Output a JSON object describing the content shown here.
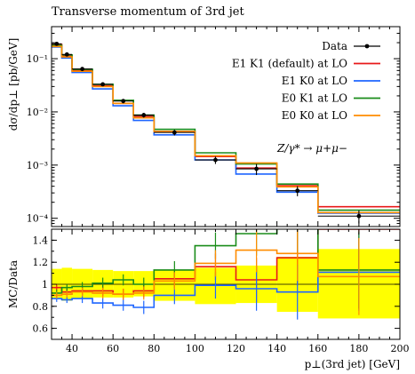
{
  "chart_data": {
    "type": "line",
    "title": "Transverse momentum of 3rd jet",
    "xlabel": "p⊥(3rd jet) [GeV]",
    "ylabel_main": "dσ/dp⊥ [pb/GeV]",
    "ylabel_ratio": "MC/Data",
    "process_label": "Z/γ* → μ+μ−",
    "x_edges": [
      30,
      35,
      40,
      50,
      60,
      70,
      80,
      100,
      120,
      140,
      160,
      200
    ],
    "xlim": [
      30,
      200
    ],
    "x_ticks": [
      "40",
      "60",
      "80",
      "100",
      "120",
      "140",
      "160",
      "180",
      "200"
    ],
    "x_tick_values": [
      40,
      60,
      80,
      100,
      120,
      140,
      160,
      180,
      200
    ],
    "main_ylim": [
      7e-05,
      0.4
    ],
    "main_y_ticks": [
      {
        "value": 0.1,
        "label": "10⁻¹"
      },
      {
        "value": 0.01,
        "label": "10⁻²"
      },
      {
        "value": 0.001,
        "label": "10⁻³"
      },
      {
        "value": 0.0001,
        "label": "10⁻⁴"
      }
    ],
    "ratio_ylim": [
      0.5,
      1.5
    ],
    "ratio_y_ticks": [
      "0.6",
      "0.8",
      "1",
      "1.2",
      "1.4"
    ],
    "ratio_y_tick_values": [
      0.6,
      0.8,
      1.0,
      1.2,
      1.4
    ],
    "legend_position": "top-right",
    "data": {
      "name": "Data",
      "color": "#000000",
      "x": [
        32.5,
        37.5,
        45,
        55,
        65,
        75,
        90,
        110,
        130,
        150,
        180
      ],
      "y": [
        0.19,
        0.12,
        0.064,
        0.033,
        0.016,
        0.0087,
        0.0041,
        0.00125,
        0.00085,
        0.00033,
        0.00011
      ],
      "yerr": [
        0.015,
        0.009,
        0.004,
        0.0025,
        0.0015,
        0.0009,
        0.0005,
        0.0002,
        0.0002,
        7e-05,
        3e-05
      ]
    },
    "band": {
      "color": "#ffff00",
      "up": [
        1.14,
        1.15,
        1.14,
        1.13,
        1.12,
        1.12,
        1.13,
        1.15,
        1.17,
        1.25,
        1.32
      ],
      "down": [
        0.87,
        0.85,
        0.87,
        0.88,
        0.88,
        0.89,
        0.85,
        0.82,
        0.83,
        0.75,
        0.69
      ]
    },
    "series": [
      {
        "name": "E1 K1 (default) at LO",
        "color": "#e8191a",
        "values": [
          0.185,
          0.112,
          0.06,
          0.031,
          0.0145,
          0.0082,
          0.0043,
          0.00145,
          0.00088,
          0.00041,
          0.000165
        ],
        "ratio": [
          0.97,
          0.93,
          0.94,
          0.94,
          0.91,
          0.94,
          1.05,
          1.16,
          1.04,
          1.24,
          1.5
        ],
        "ratio_err": [
          0.03,
          0.03,
          0.04,
          0.05,
          0.05,
          0.06,
          0.08,
          0.12,
          0.2,
          0.25,
          0.35
        ]
      },
      {
        "name": "E1 K0 at LO",
        "color": "#1f66ff",
        "values": [
          0.165,
          0.103,
          0.055,
          0.027,
          0.013,
          0.0069,
          0.0037,
          0.00125,
          0.00068,
          0.00031,
          0.000125
        ],
        "ratio": [
          0.87,
          0.86,
          0.87,
          0.83,
          0.81,
          0.79,
          0.9,
          0.99,
          0.96,
          0.93,
          1.11
        ],
        "ratio_err": [
          0.03,
          0.03,
          0.04,
          0.05,
          0.05,
          0.06,
          0.08,
          0.12,
          0.2,
          0.25,
          0.35
        ]
      },
      {
        "name": "E0 K1 at LO",
        "color": "#1a8c1a",
        "values": [
          0.178,
          0.118,
          0.063,
          0.033,
          0.0165,
          0.0087,
          0.0047,
          0.0017,
          0.00105,
          0.00044,
          0.000142
        ],
        "ratio": [
          0.92,
          0.97,
          0.98,
          1.01,
          1.04,
          1.0,
          1.13,
          1.35,
          1.46,
          1.52,
          1.13
        ],
        "ratio_err": [
          0.03,
          0.03,
          0.04,
          0.05,
          0.05,
          0.06,
          0.08,
          0.12,
          0.2,
          0.25,
          0.35
        ]
      },
      {
        "name": "E0 K0 at LO",
        "color": "#ff8c00",
        "values": [
          0.17,
          0.108,
          0.058,
          0.03,
          0.0145,
          0.0077,
          0.0043,
          0.0015,
          0.0011,
          0.00039,
          0.000128
        ],
        "ratio": [
          0.9,
          0.91,
          0.93,
          0.92,
          0.91,
          0.92,
          1.03,
          1.19,
          1.31,
          1.28,
          1.07
        ],
        "ratio_err": [
          0.03,
          0.03,
          0.04,
          0.05,
          0.05,
          0.06,
          0.08,
          0.12,
          0.2,
          0.25,
          0.35
        ]
      }
    ]
  }
}
